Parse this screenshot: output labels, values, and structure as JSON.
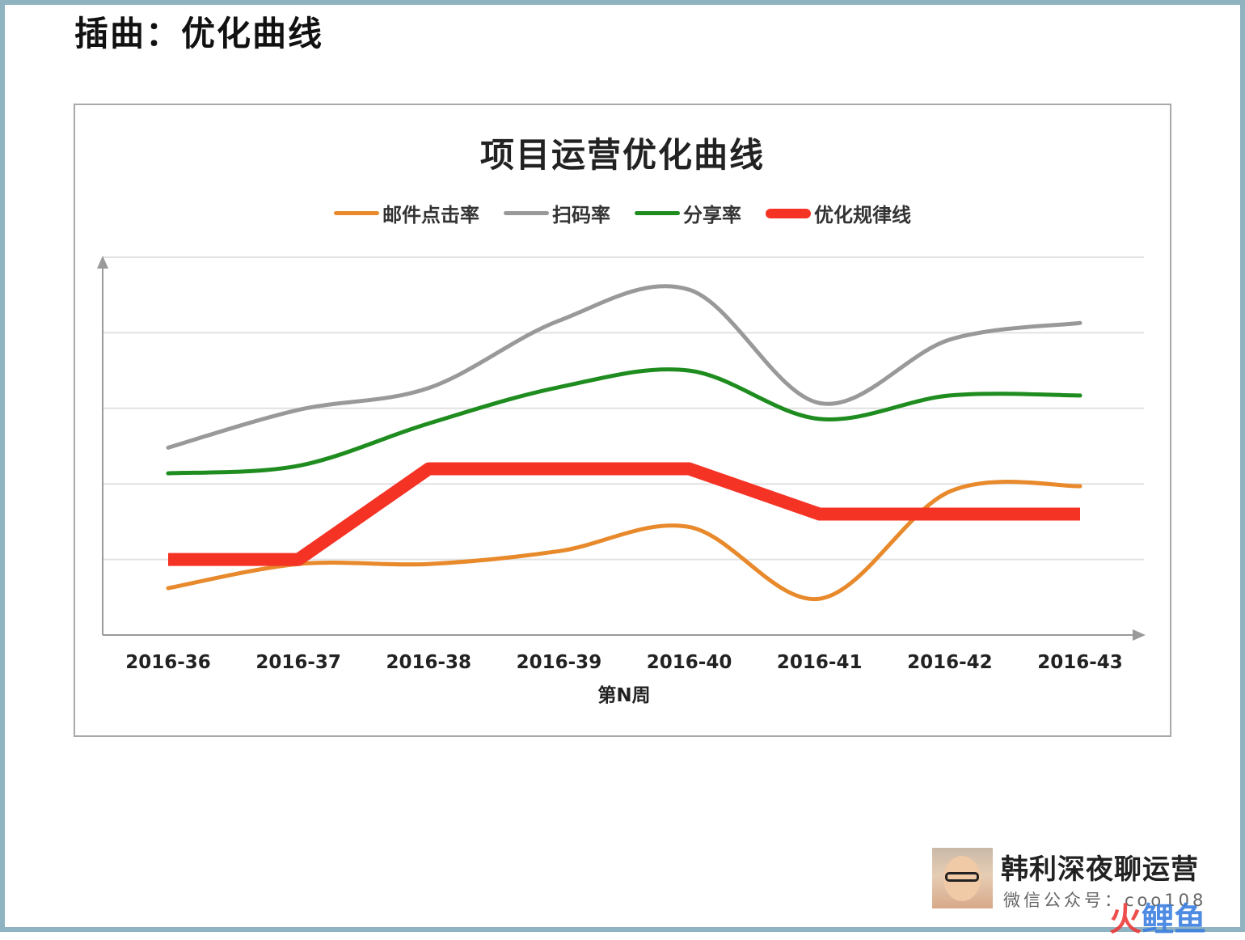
{
  "page": {
    "title": "插曲：优化曲线",
    "brand_name": "韩利深夜聊运营",
    "brand_sub": "微信公众号：coo108",
    "watermark_a": "火",
    "watermark_b": "鲤鱼"
  },
  "chart_data": {
    "type": "line",
    "title": "项目运营优化曲线",
    "xlabel": "第N周",
    "ylabel": "",
    "categories": [
      "2016-36",
      "2016-37",
      "2016-38",
      "2016-39",
      "2016-40",
      "2016-41",
      "2016-42",
      "2016-43"
    ],
    "ylim": [
      0,
      5
    ],
    "y_ticks": [
      0,
      1,
      2,
      3,
      4,
      5
    ],
    "show_y_tick_labels": false,
    "grid": "horizontal",
    "legend_position": "top",
    "series": [
      {
        "name": "邮件点击率",
        "color": "#e8892b",
        "smooth": true,
        "width": 5,
        "values": [
          0.62,
          0.94,
          0.94,
          1.11,
          1.43,
          0.48,
          1.9,
          1.97
        ]
      },
      {
        "name": "扫码率",
        "color": "#999999",
        "smooth": true,
        "width": 5,
        "values": [
          2.48,
          2.98,
          3.27,
          4.16,
          4.57,
          3.07,
          3.91,
          4.13
        ]
      },
      {
        "name": "分享率",
        "color": "#1e8c1e",
        "smooth": true,
        "width": 5,
        "values": [
          2.14,
          2.24,
          2.8,
          3.28,
          3.5,
          2.86,
          3.17,
          3.17
        ]
      },
      {
        "name": "优化规律线",
        "color": "#f53325",
        "smooth": false,
        "width": 16,
        "values": [
          1.0,
          1.0,
          2.2,
          2.2,
          2.2,
          1.6,
          1.6,
          1.6
        ]
      }
    ]
  }
}
